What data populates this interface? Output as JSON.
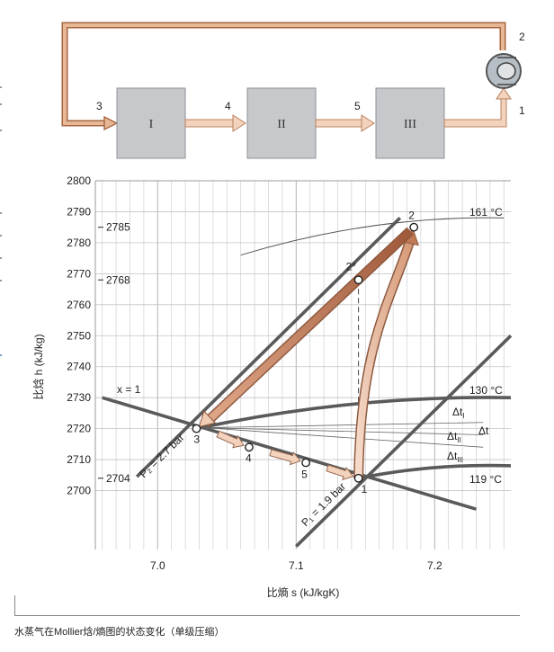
{
  "schematic": {
    "blocks": [
      "I",
      "II",
      "III"
    ],
    "point_labels": [
      "1",
      "2",
      "3",
      "4",
      "5"
    ],
    "colors": {
      "pipe_dark": "#c07a55",
      "pipe_light": "#f3d3bd",
      "block_fill": "#c6c8cc",
      "compressor_fill": "#b7bfc6"
    }
  },
  "chart": {
    "y_axis_label": "比焓 h (kJ/kg)",
    "x_axis_label": "比熵 s (kJ/kgK)",
    "y_ticks": [
      "2800",
      "2790",
      "2780",
      "2770",
      "2760",
      "2750",
      "2740",
      "2730",
      "2720",
      "2710",
      "2700"
    ],
    "x_ticks": [
      "7.0",
      "7.1",
      "7.2"
    ],
    "side_values": [
      "2785",
      "2768",
      "2704"
    ],
    "isotherm_labels": [
      "161 °C",
      "130 °C",
      "119 °C"
    ],
    "quality_label": "x = 1",
    "pressure_labels": [
      "P₂ = 2.7 bar",
      "P₁ = 1.9 bar"
    ],
    "state_labels": [
      "1",
      "2",
      "2*",
      "3",
      "4",
      "5"
    ],
    "delta_labels": {
      "total": "Δt",
      "I": "Δt",
      "I_sub": "I",
      "II": "Δt",
      "II_sub": "II",
      "III": "Δt",
      "III_sub": "III"
    }
  },
  "chart_data": {
    "type": "line",
    "xlabel": "比熵 s (kJ/kgK)",
    "ylabel": "比焓 h (kJ/kg)",
    "xlim": [
      6.955,
      7.255
    ],
    "ylim": [
      2681,
      2800
    ],
    "grid": true,
    "states": [
      {
        "name": "1",
        "s": 7.145,
        "h": 2704
      },
      {
        "name": "2",
        "s": 7.185,
        "h": 2785
      },
      {
        "name": "2*",
        "s": 7.145,
        "h": 2768
      },
      {
        "name": "3",
        "s": 7.028,
        "h": 2720
      },
      {
        "name": "4",
        "s": 7.066,
        "h": 2714
      },
      {
        "name": "5",
        "s": 7.107,
        "h": 2709
      }
    ],
    "series": [
      {
        "name": "x = 1",
        "x": [
          6.96,
          7.23
        ],
        "y": [
          2730,
          2694
        ]
      },
      {
        "name": "P₂ = 2.7 bar",
        "x": [
          6.985,
          7.175
        ],
        "y": [
          2704.5,
          2788
        ]
      },
      {
        "name": "P₁ = 1.9 bar",
        "x": [
          7.1,
          7.255
        ],
        "y": [
          2682,
          2750
        ]
      },
      {
        "name": "161 °C",
        "x": [
          7.06,
          7.25
        ],
        "y": [
          2776,
          2788
        ]
      },
      {
        "name": "130 °C",
        "x": [
          7.028,
          7.255
        ],
        "y": [
          2720,
          2730
        ]
      },
      {
        "name": "119 °C",
        "x": [
          7.145,
          7.255
        ],
        "y": [
          2704,
          2708
        ]
      }
    ],
    "caption": "水蒸气在Mollier焓/熵图的状态变化（单级压缩）"
  }
}
